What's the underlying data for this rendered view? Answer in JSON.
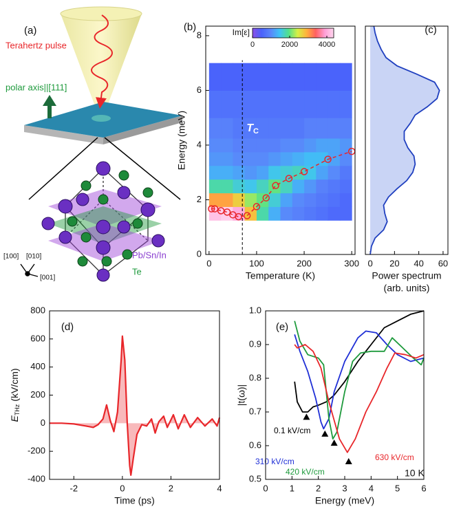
{
  "panel_a": {
    "label": "(a)",
    "pulse": "Terahertz pulse",
    "axis": "polar axis||[111]",
    "cation": "Pb/Sn/In",
    "anion": "Te",
    "directions": [
      "[100]",
      "[010]",
      "[001]"
    ]
  },
  "chart_data": [
    {
      "type": "heatmap",
      "panel_label": "(b)",
      "x_label": "Temperature (K)",
      "y_label": "Energy (meV)",
      "xlim": [
        -7,
        307
      ],
      "ylim": [
        0,
        8.35
      ],
      "xticks": [
        0,
        100,
        200,
        300
      ],
      "yticks": [
        0,
        2,
        4,
        6,
        8
      ],
      "x_edges": [
        0,
        25,
        50,
        75,
        100,
        125,
        150,
        175,
        200,
        225,
        250,
        275,
        300
      ],
      "y_edges": [
        1.25,
        1.75,
        2.25,
        2.75,
        3.25,
        3.75,
        4.25,
        5,
        6,
        7
      ],
      "z": [
        [
          4200,
          4300,
          4000,
          2800,
          1800,
          1300,
          1000,
          900,
          800,
          700,
          600,
          600
        ],
        [
          3000,
          3000,
          2700,
          2200,
          2000,
          1600,
          1200,
          1000,
          900,
          800,
          700,
          600
        ],
        [
          1800,
          1800,
          1600,
          1500,
          1700,
          2000,
          1700,
          1300,
          1100,
          900,
          800,
          700
        ],
        [
          1300,
          1300,
          1200,
          1100,
          1200,
          1500,
          1600,
          1700,
          1500,
          1200,
          1000,
          800
        ],
        [
          1100,
          1100,
          1000,
          1000,
          1000,
          1100,
          1200,
          1300,
          1400,
          1400,
          1200,
          1000
        ],
        [
          1000,
          1000,
          900,
          900,
          900,
          900,
          1000,
          1000,
          1100,
          1200,
          1200,
          1100
        ],
        [
          900,
          900,
          800,
          800,
          800,
          800,
          800,
          800,
          900,
          900,
          900,
          900
        ],
        [
          700,
          700,
          700,
          700,
          700,
          700,
          700,
          700,
          700,
          700,
          700,
          700
        ],
        [
          500,
          500,
          500,
          500,
          500,
          500,
          500,
          500,
          500,
          500,
          500,
          500
        ]
      ],
      "colorbar": {
        "label": "Im[ε]",
        "lim": [
          0,
          4370
        ],
        "ticks": [
          0,
          2000,
          4000
        ],
        "colors": [
          "#8a4fe6",
          "#4a62fb",
          "#5a86fa",
          "#3fc3f5",
          "#52e08a",
          "#d6f045",
          "#ffb13c",
          "#ff6060",
          "#ff9ed6",
          "#ffd6ee"
        ]
      },
      "series": [
        {
          "color": "#e8262a",
          "x": [
            5,
            12,
            25,
            38,
            50,
            62,
            80,
            100,
            120,
            140,
            168,
            200,
            250,
            300
          ],
          "values": [
            1.67,
            1.67,
            1.6,
            1.55,
            1.45,
            1.38,
            1.42,
            1.75,
            2.07,
            2.52,
            2.78,
            3.03,
            3.48,
            3.77
          ]
        }
      ],
      "tc": {
        "value": 70,
        "label": "T",
        "sub": "C"
      }
    },
    {
      "type": "area",
      "orientation": "horizontal",
      "panel_label": "(c)",
      "x_label": "Power spectrum",
      "x_label2": "(arb. units)",
      "xlim": [
        -4,
        64
      ],
      "ylim": [
        0,
        8.35
      ],
      "xticks": [
        0,
        20,
        40,
        60
      ],
      "color": "#1f3fbf",
      "fill": "#c9d4f5",
      "energy": [
        0,
        0.3,
        0.6,
        0.9,
        1.2,
        1.5,
        1.8,
        2.1,
        2.4,
        2.7,
        3.0,
        3.3,
        3.6,
        3.9,
        4.2,
        4.5,
        4.8,
        5.1,
        5.4,
        5.7,
        6.0,
        6.3,
        6.6,
        6.9,
        7.2,
        7.5,
        7.8,
        8.1,
        8.35
      ],
      "values": [
        0,
        1,
        4,
        11,
        14,
        12,
        11,
        15,
        22,
        30,
        35,
        37,
        36,
        31,
        28,
        28,
        33,
        37,
        47,
        55,
        57,
        53,
        38,
        22,
        13,
        9,
        6,
        4,
        3
      ]
    },
    {
      "type": "area",
      "panel_label": "(d)",
      "x_label": "Time (ps)",
      "y_label": {
        "main": "E",
        "sub": "THz",
        "unit": "(kV/cm)"
      },
      "xlim": [
        -3,
        4
      ],
      "ylim": [
        -400,
        800
      ],
      "xticks": [
        -2,
        0,
        2,
        4
      ],
      "yticks": [
        -400,
        -200,
        0,
        200,
        400,
        600,
        800
      ],
      "color": "#e8262a",
      "fill": "#f8b9bb",
      "x": [
        -3,
        -2.5,
        -2,
        -1.5,
        -1.2,
        -1,
        -0.8,
        -0.65,
        -0.5,
        -0.35,
        -0.2,
        -0.05,
        0,
        0.1,
        0.2,
        0.3,
        0.35,
        0.45,
        0.6,
        0.8,
        1,
        1.2,
        1.35,
        1.5,
        1.7,
        1.85,
        2.1,
        2.3,
        2.55,
        2.8,
        3.1,
        3.4,
        3.7,
        3.9,
        4
      ],
      "values": [
        0,
        0,
        -5,
        -20,
        -30,
        -10,
        30,
        130,
        20,
        -60,
        80,
        450,
        620,
        450,
        0,
        -300,
        -370,
        -250,
        -80,
        -10,
        -20,
        30,
        -70,
        10,
        50,
        -30,
        60,
        -40,
        60,
        -30,
        40,
        -20,
        30,
        -20,
        40
      ]
    },
    {
      "type": "line",
      "panel_label": "(e)",
      "x_label": "Energy (meV)",
      "y_label": "|t(ω)|",
      "annotation": "10 K",
      "xlim": [
        0,
        6
      ],
      "ylim": [
        0.5,
        1.0
      ],
      "xticks": [
        0,
        1,
        2,
        3,
        4,
        5,
        6
      ],
      "yticks": [
        0.5,
        0.6,
        0.7,
        0.8,
        0.9,
        {
          "value": 1,
          "label": "1.0"
        }
      ],
      "series": [
        {
          "name": "0.1 kV/cm",
          "color": "#000000",
          "x": [
            1.1,
            1.2,
            1.4,
            1.6,
            1.8,
            2.0,
            2.3,
            2.6,
            3.0,
            3.5,
            4.0,
            4.5,
            5.0,
            5.5,
            6.0
          ],
          "values": [
            0.79,
            0.73,
            0.7,
            0.7,
            0.715,
            0.72,
            0.73,
            0.75,
            0.79,
            0.85,
            0.9,
            0.95,
            0.97,
            0.99,
            1.0
          ],
          "marker": {
            "x": 1.55,
            "y": 0.685
          }
        },
        {
          "name": "310 kV/cm",
          "color": "#1f2fd6",
          "x": [
            1.1,
            1.3,
            1.6,
            1.9,
            2.1,
            2.2,
            2.4,
            2.6,
            3.0,
            3.5,
            3.8,
            4.2,
            4.6,
            5.0,
            5.5,
            6.0
          ],
          "values": [
            0.93,
            0.88,
            0.82,
            0.74,
            0.67,
            0.65,
            0.68,
            0.76,
            0.85,
            0.92,
            0.94,
            0.935,
            0.9,
            0.87,
            0.85,
            0.86
          ],
          "marker": {
            "x": 2.25,
            "y": 0.635
          }
        },
        {
          "name": "420 kV/cm",
          "color": "#1e9a3c",
          "x": [
            1.1,
            1.3,
            1.6,
            2.0,
            2.2,
            2.4,
            2.55,
            2.7,
            3.0,
            3.3,
            3.6,
            4.0,
            4.5,
            4.8,
            5.2,
            5.6,
            5.9,
            6.0
          ],
          "values": [
            0.97,
            0.91,
            0.87,
            0.86,
            0.84,
            0.68,
            0.62,
            0.64,
            0.76,
            0.85,
            0.875,
            0.88,
            0.88,
            0.92,
            0.89,
            0.86,
            0.84,
            0.86
          ],
          "marker": {
            "x": 2.6,
            "y": 0.608
          }
        },
        {
          "name": "630 kV/cm",
          "color": "#e8262a",
          "x": [
            1.1,
            1.2,
            1.5,
            1.8,
            2.1,
            2.4,
            2.8,
            3.1,
            3.4,
            3.8,
            4.2,
            4.6,
            4.9,
            5.3,
            5.7,
            6.0
          ],
          "values": [
            0.9,
            0.89,
            0.9,
            0.88,
            0.83,
            0.73,
            0.62,
            0.58,
            0.62,
            0.7,
            0.76,
            0.83,
            0.875,
            0.87,
            0.86,
            0.87
          ],
          "marker": {
            "x": 3.15,
            "y": 0.553
          }
        }
      ]
    }
  ]
}
